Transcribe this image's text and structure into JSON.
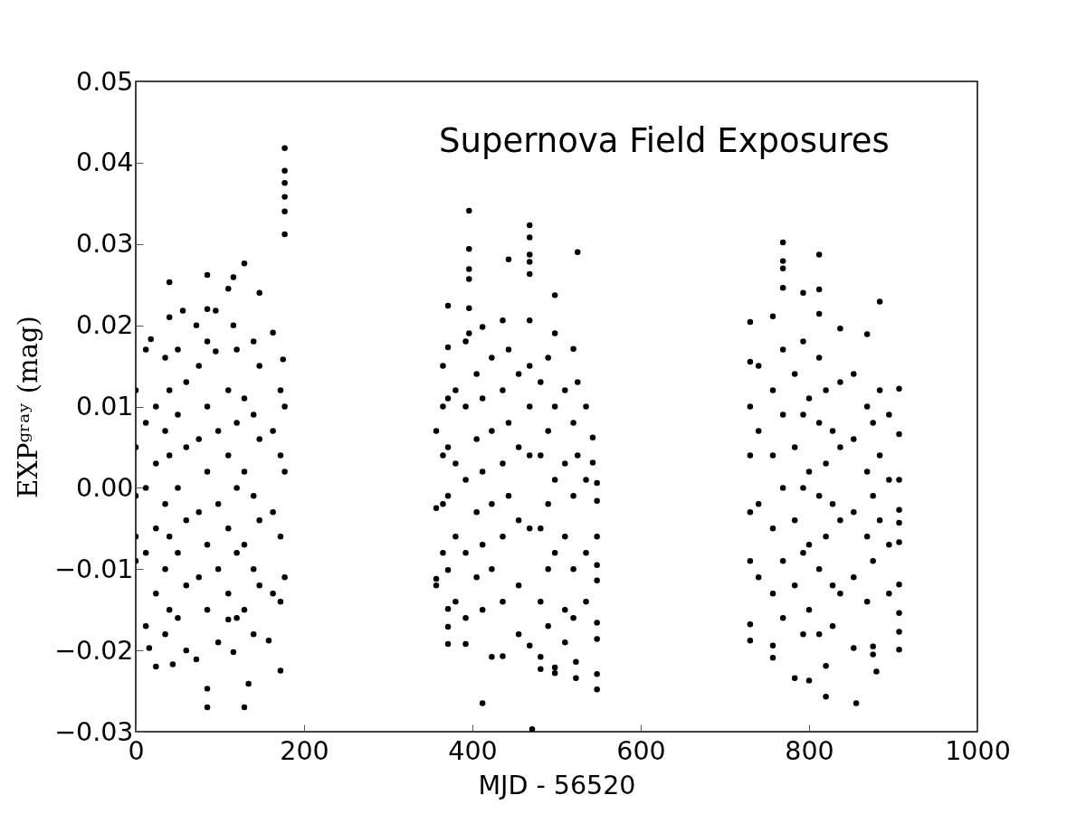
{
  "chart_data": {
    "type": "scatter",
    "title": "Supernova Field Exposures",
    "xlabel": "MJD - 56520",
    "ylabel": "EXPᵍʳᵃʸ (mag)",
    "xlim": [
      0,
      1000
    ],
    "xticks": [
      0,
      200,
      400,
      600,
      800,
      1000
    ],
    "ylim": [
      -0.03,
      0.05
    ],
    "yticks": [
      {
        "value": -0.03,
        "label": "−0.03"
      },
      {
        "value": -0.02,
        "label": "−0.02"
      },
      {
        "value": -0.01,
        "label": "−0.01"
      },
      {
        "value": 0,
        "label": "0.00"
      },
      0.01,
      0.02,
      0.03,
      0.04,
      0.05
    ],
    "marker": "circle",
    "series": [
      {
        "color": "#000000",
        "x": [
          0,
          0,
          0,
          0,
          0,
          12,
          12,
          12,
          12,
          12,
          18,
          16,
          24,
          24,
          24,
          24,
          24,
          35,
          35,
          35,
          35,
          35,
          40,
          40,
          40,
          40,
          40,
          40,
          44,
          50,
          50,
          50,
          50,
          50,
          56,
          60,
          60,
          60,
          60,
          60,
          72,
          72,
          75,
          75,
          75,
          75,
          85,
          85,
          85,
          85,
          85,
          85,
          85,
          85,
          85,
          95,
          95,
          98,
          98,
          98,
          98,
          110,
          110,
          110,
          110,
          110,
          110,
          116,
          116,
          116,
          120,
          120,
          120,
          120,
          120,
          129,
          129,
          129,
          129,
          129,
          129,
          134,
          140,
          140,
          140,
          140,
          140,
          147,
          147,
          147,
          147,
          147,
          158,
          163,
          163,
          163,
          163,
          172,
          172,
          172,
          172,
          172,
          175,
          177,
          177,
          177,
          177,
          177,
          177,
          177,
          177,
          177,
          357,
          357,
          357,
          357,
          365,
          365,
          365,
          365,
          365,
          371,
          371,
          371,
          371,
          371,
          371,
          371,
          371,
          371,
          380,
          380,
          380,
          380,
          392,
          392,
          392,
          392,
          392,
          392,
          396,
          396,
          396,
          396,
          396,
          396,
          405,
          405,
          405,
          405,
          412,
          412,
          412,
          412,
          412,
          412,
          423,
          423,
          423,
          423,
          423,
          436,
          436,
          436,
          436,
          436,
          436,
          443,
          443,
          443,
          443,
          455,
          455,
          455,
          455,
          455,
          468,
          468,
          468,
          468,
          468,
          468,
          468,
          468,
          468,
          468,
          468,
          471,
          481,
          481,
          481,
          481,
          481,
          481,
          490,
          490,
          490,
          490,
          490,
          498,
          498,
          498,
          498,
          498,
          498,
          498,
          510,
          510,
          510,
          510,
          510,
          520,
          520,
          520,
          520,
          520,
          523,
          523,
          525,
          525,
          525,
          535,
          535,
          535,
          535,
          543,
          543,
          548,
          548,
          548,
          548,
          548,
          548,
          548,
          548,
          548,
          730,
          730,
          730,
          730,
          730,
          730,
          730,
          730,
          740,
          740,
          740,
          740,
          757,
          757,
          757,
          757,
          757,
          757,
          757,
          769,
          769,
          769,
          769,
          769,
          769,
          769,
          769,
          769,
          783,
          783,
          783,
          783,
          783,
          793,
          793,
          793,
          793,
          793,
          793,
          800,
          800,
          800,
          800,
          800,
          812,
          812,
          812,
          812,
          812,
          812,
          812,
          812,
          820,
          820,
          820,
          820,
          820,
          828,
          828,
          828,
          828,
          837,
          837,
          837,
          837,
          837,
          853,
          853,
          853,
          853,
          853,
          856,
          869,
          869,
          869,
          869,
          869,
          876,
          876,
          876,
          876,
          876,
          880,
          884,
          884,
          884,
          884,
          895,
          895,
          895,
          895,
          907,
          907,
          907,
          907,
          907,
          907,
          907,
          907,
          907,
          907
        ],
        "values": [
          0.012,
          0.005,
          -0.001,
          -0.006,
          -0.009,
          0.017,
          0.008,
          0.0,
          -0.008,
          -0.017,
          0.0183,
          -0.0197,
          0.01,
          0.003,
          -0.005,
          -0.013,
          -0.022,
          0.016,
          0.007,
          -0.002,
          -0.01,
          -0.018,
          0.0253,
          0.021,
          0.012,
          0.004,
          -0.006,
          -0.015,
          -0.0217,
          0.017,
          0.009,
          0.0,
          -0.008,
          -0.016,
          0.0218,
          0.013,
          0.005,
          -0.004,
          -0.012,
          -0.02,
          0.02,
          -0.0211,
          0.015,
          0.006,
          -0.003,
          -0.011,
          0.0262,
          0.022,
          0.018,
          0.01,
          0.002,
          -0.007,
          -0.015,
          -0.0247,
          -0.027,
          0.0218,
          0.0168,
          0.007,
          -0.002,
          -0.01,
          -0.019,
          0.0245,
          0.012,
          0.004,
          -0.005,
          -0.013,
          -0.0162,
          0.0259,
          0.02,
          -0.0202,
          0.017,
          0.008,
          0.0,
          -0.008,
          -0.016,
          0.0276,
          0.011,
          0.002,
          -0.007,
          -0.015,
          -0.027,
          -0.0241,
          0.018,
          0.009,
          -0.001,
          -0.01,
          -0.018,
          0.024,
          0.015,
          0.006,
          -0.004,
          -0.012,
          -0.0188,
          0.0191,
          0.007,
          -0.003,
          -0.013,
          0.012,
          0.004,
          -0.006,
          -0.014,
          -0.0225,
          0.0158,
          0.0418,
          0.039,
          0.0375,
          0.0358,
          0.034,
          0.0312,
          0.01,
          0.002,
          -0.011,
          0.007,
          -0.0025,
          -0.0112,
          -0.012,
          0.015,
          0.01,
          0.004,
          -0.002,
          -0.008,
          0.0224,
          0.0173,
          0.011,
          0.005,
          -0.001,
          -0.0101,
          -0.0149,
          -0.0171,
          -0.0192,
          0.012,
          0.003,
          -0.006,
          -0.014,
          0.018,
          0.01,
          0.001,
          -0.008,
          -0.016,
          -0.0192,
          0.0341,
          0.0294,
          0.0269,
          0.0257,
          0.0221,
          0.019,
          0.014,
          0.006,
          -0.003,
          -0.011,
          0.0198,
          0.011,
          0.002,
          -0.007,
          -0.015,
          -0.0265,
          0.016,
          0.007,
          -0.002,
          -0.01,
          -0.0208,
          0.0206,
          0.012,
          0.003,
          -0.006,
          -0.014,
          -0.0207,
          0.0281,
          0.017,
          0.008,
          -0.001,
          0.014,
          0.005,
          -0.004,
          -0.012,
          -0.018,
          0.0323,
          0.0308,
          0.0287,
          0.0278,
          0.0263,
          0.0206,
          0.015,
          0.01,
          0.004,
          -0.005,
          -0.0194,
          -0.0297,
          0.013,
          0.004,
          -0.005,
          -0.014,
          -0.0208,
          -0.0223,
          0.016,
          0.007,
          -0.002,
          -0.01,
          -0.017,
          0.0237,
          0.019,
          0.01,
          0.001,
          -0.008,
          -0.0221,
          -0.0228,
          0.012,
          0.003,
          -0.006,
          -0.015,
          -0.019,
          0.0171,
          0.008,
          -0.001,
          -0.01,
          -0.016,
          -0.0214,
          -0.0234,
          0.029,
          0.013,
          0.004,
          0.01,
          0.001,
          -0.008,
          -0.014,
          0.0062,
          0.0031,
          0.0006,
          -0.0016,
          -0.006,
          -0.0095,
          -0.0114,
          -0.0166,
          -0.0186,
          -0.0229,
          -0.0248,
          0.0204,
          0.0155,
          0.01,
          0.004,
          -0.003,
          -0.009,
          -0.0168,
          -0.0188,
          0.015,
          0.007,
          -0.002,
          -0.011,
          0.0211,
          0.012,
          0.004,
          -0.005,
          -0.013,
          -0.0194,
          -0.0209,
          0.0302,
          0.0279,
          0.027,
          0.0246,
          0.017,
          0.009,
          0.0,
          -0.009,
          -0.016,
          0.014,
          0.005,
          -0.004,
          -0.012,
          -0.0234,
          0.024,
          0.018,
          0.009,
          0.0,
          -0.008,
          -0.018,
          0.011,
          0.002,
          -0.007,
          -0.015,
          -0.0237,
          0.0287,
          0.0244,
          0.0214,
          0.016,
          0.008,
          -0.001,
          -0.01,
          -0.018,
          0.012,
          0.003,
          -0.006,
          -0.0219,
          -0.0257,
          0.007,
          -0.002,
          -0.012,
          -0.017,
          0.0196,
          0.013,
          0.005,
          -0.004,
          -0.013,
          0.014,
          0.006,
          -0.003,
          -0.011,
          -0.0197,
          -0.0265,
          0.0189,
          0.01,
          0.002,
          -0.006,
          -0.014,
          0.008,
          -0.001,
          -0.009,
          -0.0195,
          -0.0205,
          -0.0226,
          0.0229,
          0.012,
          0.004,
          -0.004,
          0.009,
          0.001,
          -0.007,
          -0.013,
          0.0122,
          0.0066,
          0.001,
          -0.0027,
          -0.0043,
          -0.0067,
          -0.0119,
          -0.0154,
          -0.0177,
          -0.0199
        ]
      }
    ]
  }
}
